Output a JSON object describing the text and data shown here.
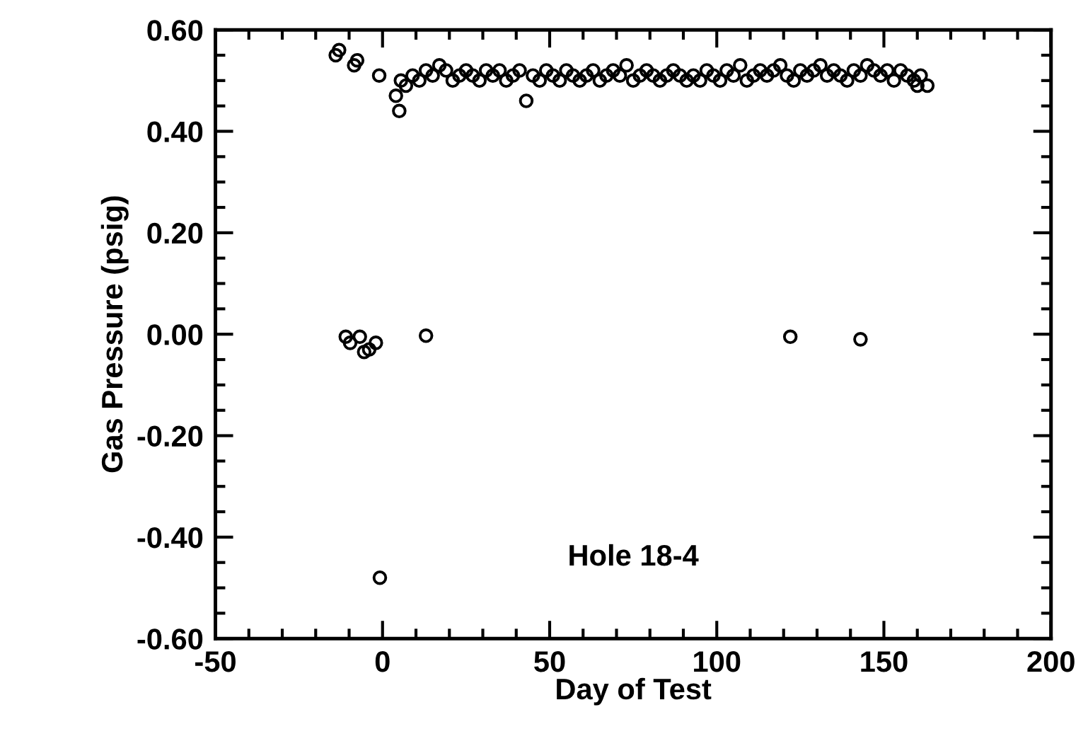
{
  "chart_data": {
    "type": "scatter",
    "xlabel": "Day of Test",
    "ylabel": "Gas Pressure (psig)",
    "annotations": [
      "Hole 18-4"
    ],
    "x": [
      -14,
      -13,
      -8.5,
      -7.6,
      -1,
      4,
      5,
      5.5,
      7,
      9,
      11,
      13,
      15,
      17,
      19,
      21,
      23,
      25,
      27,
      29,
      31,
      33,
      35,
      37,
      39,
      41,
      43,
      45,
      47,
      49,
      51,
      53,
      55,
      57,
      59,
      61,
      63,
      65,
      67,
      69,
      71,
      73,
      75,
      77,
      79,
      81,
      83,
      85,
      87,
      89,
      91,
      93,
      95,
      97,
      99,
      101,
      103,
      105,
      107,
      109,
      111,
      113,
      115,
      117,
      119,
      121,
      123,
      125,
      127,
      129,
      131,
      133,
      135,
      137,
      139,
      141,
      143,
      145,
      147,
      149,
      151,
      153,
      155,
      157,
      159,
      160,
      161,
      163,
      -11,
      -9.7,
      -6.8,
      -5.5,
      -4,
      -2,
      -0.8,
      13,
      122,
      143
    ],
    "values": [
      0.55,
      0.56,
      0.53,
      0.54,
      0.51,
      0.47,
      0.44,
      0.5,
      0.49,
      0.51,
      0.5,
      0.52,
      0.51,
      0.53,
      0.52,
      0.5,
      0.51,
      0.52,
      0.51,
      0.5,
      0.52,
      0.51,
      0.52,
      0.5,
      0.51,
      0.52,
      0.46,
      0.51,
      0.5,
      0.52,
      0.51,
      0.5,
      0.52,
      0.51,
      0.5,
      0.51,
      0.52,
      0.5,
      0.51,
      0.52,
      0.51,
      0.53,
      0.5,
      0.51,
      0.52,
      0.51,
      0.5,
      0.51,
      0.52,
      0.51,
      0.5,
      0.51,
      0.5,
      0.52,
      0.51,
      0.5,
      0.52,
      0.51,
      0.53,
      0.5,
      0.51,
      0.52,
      0.51,
      0.52,
      0.53,
      0.51,
      0.5,
      0.52,
      0.51,
      0.52,
      0.53,
      0.51,
      0.52,
      0.51,
      0.5,
      0.52,
      0.51,
      0.53,
      0.52,
      0.51,
      0.52,
      0.5,
      0.52,
      0.51,
      0.5,
      0.49,
      0.51,
      0.49,
      -0.005,
      -0.017,
      -0.005,
      -0.035,
      -0.03,
      -0.017,
      -0.48,
      -0.003,
      -0.005,
      -0.01
    ],
    "color": "#000000",
    "marker": "circle",
    "grid": false,
    "xlim": [
      -50,
      200
    ],
    "xticks": [
      -50,
      0,
      50,
      100,
      150,
      200
    ],
    "ylim": [
      -0.6,
      0.6
    ],
    "yticks": [
      {
        "value": -0.6,
        "label": "-0.60"
      },
      {
        "value": -0.4,
        "label": "-0.40"
      },
      {
        "value": -0.2,
        "label": "-0.20"
      },
      {
        "value": 0,
        "label": "0.00"
      },
      {
        "value": 0.2,
        "label": "0.20"
      },
      {
        "value": 0.4,
        "label": "0.40"
      },
      {
        "value": 0.6,
        "label": "0.60"
      }
    ]
  }
}
